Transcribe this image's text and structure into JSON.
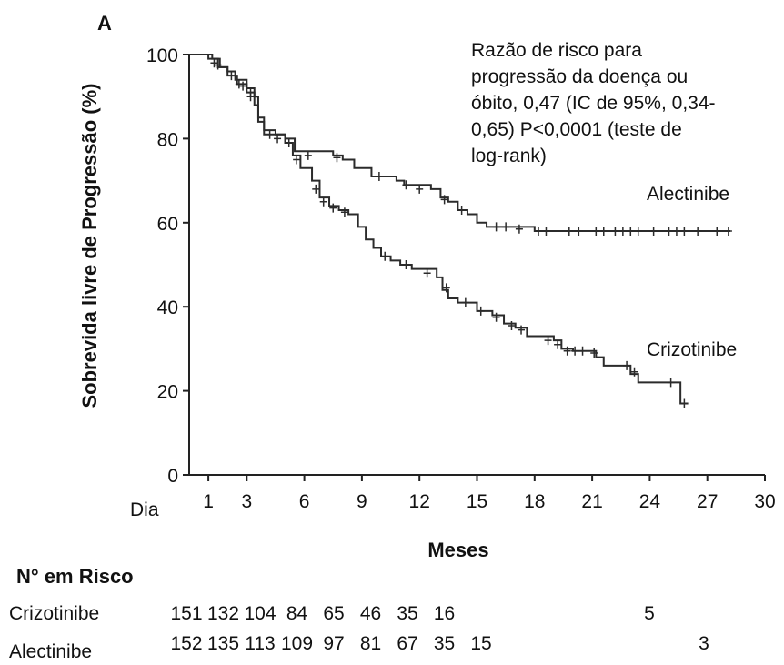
{
  "chart_data": {
    "type": "line",
    "panel_label": "A",
    "ylabel": "Sobrevida livre de Progressão (%)",
    "xlabel": "Meses",
    "day_label": "Dia",
    "xlim": [
      0,
      30
    ],
    "ylim": [
      0,
      100
    ],
    "x_ticks": [
      1,
      3,
      6,
      9,
      12,
      15,
      18,
      21,
      24,
      27,
      30
    ],
    "y_ticks": [
      0,
      20,
      40,
      60,
      80,
      100
    ],
    "annotation": [
      "Razão de risco para",
      "progressão da doença ou",
      "óbito, 0,47 (IC de 95%, 0,34-",
      "0,65) P<0,0001 (teste de",
      "log-rank)"
    ],
    "series": [
      {
        "name": "Alectinibe",
        "color": "#2b2b2b",
        "steps": [
          [
            0,
            100
          ],
          [
            1.2,
            99
          ],
          [
            1.6,
            97
          ],
          [
            2.0,
            96
          ],
          [
            2.4,
            94
          ],
          [
            3.0,
            92
          ],
          [
            3.4,
            90
          ],
          [
            3.6,
            85
          ],
          [
            3.9,
            82
          ],
          [
            4.5,
            81
          ],
          [
            5.0,
            80
          ],
          [
            5.5,
            77
          ],
          [
            7.5,
            76
          ],
          [
            8.0,
            75
          ],
          [
            8.6,
            73
          ],
          [
            9.5,
            71
          ],
          [
            10.8,
            70
          ],
          [
            11.2,
            69
          ],
          [
            12.6,
            68
          ],
          [
            13.1,
            66
          ],
          [
            13.5,
            65
          ],
          [
            14.0,
            63
          ],
          [
            14.5,
            62
          ],
          [
            15.0,
            60
          ],
          [
            15.5,
            59
          ],
          [
            18.0,
            58
          ],
          [
            28.2,
            58
          ]
        ],
        "censors": [
          [
            1.5,
            97.5
          ],
          [
            2.2,
            95
          ],
          [
            2.8,
            92.5
          ],
          [
            3.2,
            91
          ],
          [
            4.2,
            81
          ],
          [
            5.2,
            79
          ],
          [
            6.2,
            76
          ],
          [
            7.7,
            75.5
          ],
          [
            9.9,
            71
          ],
          [
            11.3,
            69
          ],
          [
            12.0,
            68
          ],
          [
            13.3,
            65.5
          ],
          [
            14.2,
            63
          ],
          [
            16.0,
            59
          ],
          [
            16.5,
            59
          ],
          [
            17.2,
            58.5
          ],
          [
            18.2,
            58
          ],
          [
            18.6,
            58
          ],
          [
            19.8,
            58
          ],
          [
            20.3,
            58
          ],
          [
            21.2,
            58
          ],
          [
            21.6,
            58
          ],
          [
            22.2,
            58
          ],
          [
            22.6,
            58
          ],
          [
            23.0,
            58
          ],
          [
            23.4,
            58
          ],
          [
            24.2,
            58
          ],
          [
            25.0,
            58
          ],
          [
            25.4,
            58
          ],
          [
            25.8,
            58
          ],
          [
            26.5,
            58
          ],
          [
            27.5,
            58
          ],
          [
            28.1,
            58
          ]
        ]
      },
      {
        "name": "Crizotinibe",
        "color": "#2b2b2b",
        "steps": [
          [
            0,
            100
          ],
          [
            1.0,
            99
          ],
          [
            1.5,
            97
          ],
          [
            2.0,
            95
          ],
          [
            2.5,
            93
          ],
          [
            3.0,
            91
          ],
          [
            3.4,
            88
          ],
          [
            3.6,
            84
          ],
          [
            3.9,
            81
          ],
          [
            5.0,
            79
          ],
          [
            5.4,
            76
          ],
          [
            5.8,
            73
          ],
          [
            6.4,
            70
          ],
          [
            6.8,
            66
          ],
          [
            7.3,
            64
          ],
          [
            7.8,
            63
          ],
          [
            8.3,
            62
          ],
          [
            8.8,
            59
          ],
          [
            9.2,
            56
          ],
          [
            9.6,
            54
          ],
          [
            10.0,
            52
          ],
          [
            10.5,
            51
          ],
          [
            11.0,
            50
          ],
          [
            11.6,
            49
          ],
          [
            12.9,
            47
          ],
          [
            13.2,
            44
          ],
          [
            13.5,
            42
          ],
          [
            14.0,
            41
          ],
          [
            15.0,
            39
          ],
          [
            15.8,
            38
          ],
          [
            16.4,
            36
          ],
          [
            17.0,
            35
          ],
          [
            17.6,
            33
          ],
          [
            19.0,
            32
          ],
          [
            19.4,
            30
          ],
          [
            20.0,
            29.5
          ],
          [
            21.2,
            28
          ],
          [
            21.6,
            26
          ],
          [
            23.0,
            24
          ],
          [
            23.4,
            22
          ],
          [
            25.6,
            22
          ],
          [
            25.6,
            17
          ],
          [
            26.0,
            17
          ]
        ],
        "censors": [
          [
            1.3,
            98
          ],
          [
            2.6,
            93
          ],
          [
            3.2,
            90
          ],
          [
            4.6,
            80
          ],
          [
            5.6,
            75
          ],
          [
            6.6,
            68
          ],
          [
            7.0,
            65
          ],
          [
            7.5,
            63.5
          ],
          [
            8.1,
            62.5
          ],
          [
            10.2,
            52
          ],
          [
            11.3,
            50
          ],
          [
            12.4,
            48
          ],
          [
            13.4,
            44.5
          ],
          [
            14.4,
            41
          ],
          [
            15.2,
            39
          ],
          [
            16.0,
            37.5
          ],
          [
            16.8,
            35.5
          ],
          [
            17.3,
            34.5
          ],
          [
            18.7,
            32
          ],
          [
            19.2,
            31
          ],
          [
            19.7,
            29.5
          ],
          [
            20.1,
            29.5
          ],
          [
            20.5,
            29.5
          ],
          [
            21.1,
            29
          ],
          [
            22.8,
            26
          ],
          [
            23.2,
            24.5
          ],
          [
            25.1,
            22
          ],
          [
            25.8,
            17
          ]
        ]
      }
    ],
    "series_label_positions": [
      "right-of-curve",
      "right-of-curve"
    ],
    "risk_table": {
      "title": "N° em Risco",
      "rows": [
        {
          "label": "Crizotinibe",
          "values": [
            "151",
            "132",
            "104",
            "84",
            "65",
            "46",
            "35",
            "16",
            "5"
          ]
        },
        {
          "label": "Alectinibe",
          "values": [
            "152",
            "135",
            "113",
            "109",
            "97",
            "81",
            "67",
            "35",
            "15",
            "3"
          ]
        }
      ]
    }
  }
}
